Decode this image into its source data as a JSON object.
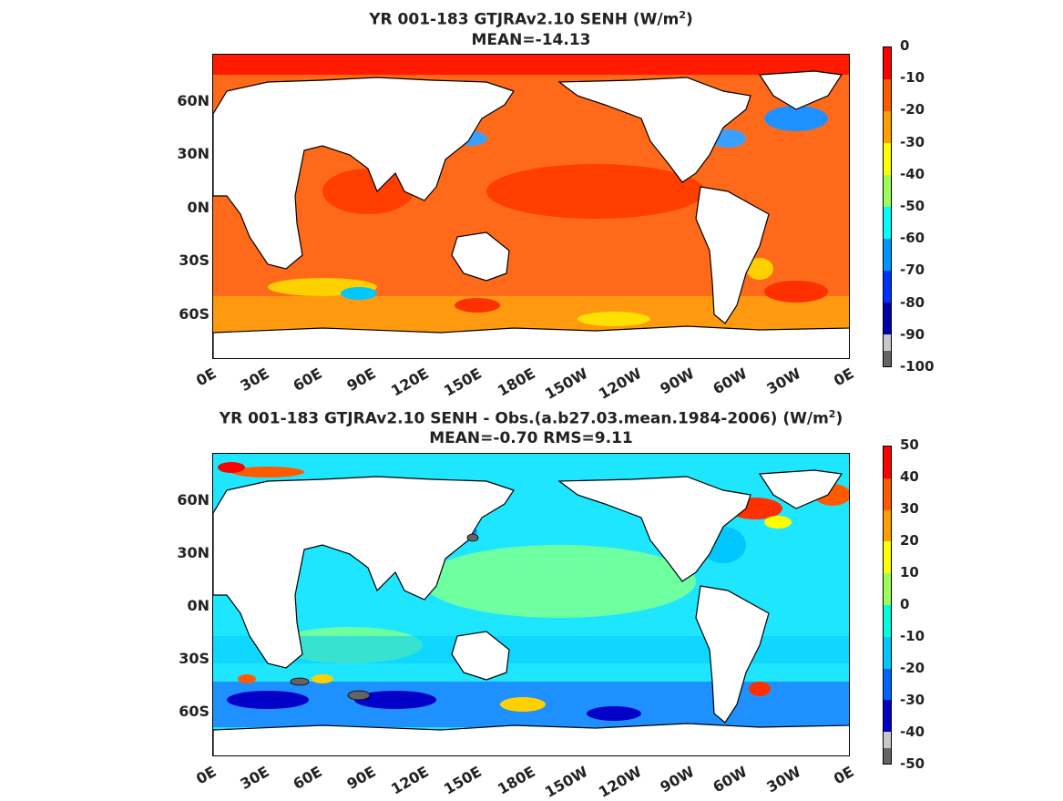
{
  "panels": [
    {
      "title_main": "YR 001-183 GTJRAv2.10  SENH (W/m",
      "title_sup": "2",
      "title_close": ")",
      "stats": "MEAN=-14.13",
      "lat_labels": [
        "60N",
        "30N",
        "0N",
        "30S",
        "60S"
      ],
      "lon_labels": [
        "0E",
        "30E",
        "60E",
        "90E",
        "120E",
        "150E",
        "180E",
        "150W",
        "120W",
        "90W",
        "60W",
        "30W",
        "0E"
      ],
      "colorbar_ticks": [
        "0",
        "-10",
        "-20",
        "-30",
        "-40",
        "-50",
        "-60",
        "-70",
        "-80",
        "-90",
        "-100"
      ],
      "colorbar_colors": [
        "#ff0000",
        "#ff5a00",
        "#ffa000",
        "#ffff00",
        "#9bff5a",
        "#00ffff",
        "#0096ff",
        "#0032ff",
        "#0000aa",
        "#c8c8c8",
        "#646464"
      ],
      "ocean_color": "#ff6a1a"
    },
    {
      "title_main": "YR 001-183 GTJRAv2.10 SENH - Obs.(a.b27.03.mean.1984-2006) (W/m",
      "title_sup": "2",
      "title_close": ")",
      "stats": "MEAN=-0.70 RMS=9.11",
      "lat_labels": [
        "60N",
        "30N",
        "0N",
        "30S",
        "60S"
      ],
      "lon_labels": [
        "0E",
        "30E",
        "60E",
        "90E",
        "120E",
        "150E",
        "180E",
        "150W",
        "120W",
        "90W",
        "60W",
        "30W",
        "0E"
      ],
      "colorbar_ticks": [
        "50",
        "40",
        "30",
        "20",
        "10",
        "0",
        "-10",
        "-20",
        "-30",
        "-40",
        "-50"
      ],
      "colorbar_colors": [
        "#ff0000",
        "#ff5a00",
        "#ffa000",
        "#ffff00",
        "#9bff5a",
        "#00ffdc",
        "#00c8ff",
        "#0064ff",
        "#0000c8",
        "#c8c8c8",
        "#646464"
      ],
      "ocean_color": "#1ee6ff"
    }
  ]
}
